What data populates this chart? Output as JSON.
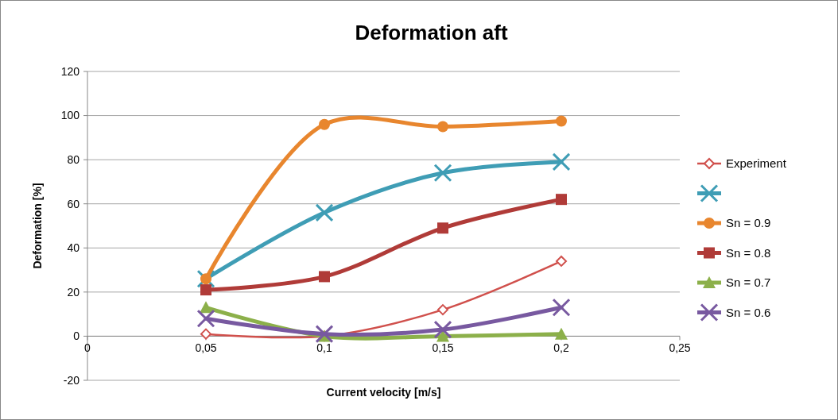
{
  "chart_data": {
    "type": "line",
    "title": "Deformation aft",
    "xlabel": "Current velocity [m/s]",
    "ylabel": "Deformation [%]",
    "x": [
      0.05,
      0.1,
      0.15,
      0.2
    ],
    "xlim": [
      0,
      0.25
    ],
    "xticks": [
      0,
      {
        "value": 0.05,
        "label": "0,05"
      },
      {
        "value": 0.1,
        "label": "0,1"
      },
      {
        "value": 0.15,
        "label": "0,15"
      },
      {
        "value": 0.2,
        "label": "0,2"
      },
      {
        "value": 0.25,
        "label": "0,25"
      }
    ],
    "ylim": [
      -20,
      120
    ],
    "yticks": [
      -20,
      0,
      20,
      40,
      60,
      80,
      100,
      120
    ],
    "grid": "y",
    "legend": "right",
    "line_style": "solid",
    "series": [
      {
        "name": "Experiment",
        "color": "#d0504c",
        "values": [
          1,
          0,
          12,
          34
        ],
        "marker": "diamond"
      },
      {
        "color": "#3f9db5",
        "values": [
          26,
          56,
          74,
          79
        ],
        "marker": "cross"
      },
      {
        "name": "Sn = 0.9",
        "color": "#e8862e",
        "values": [
          26,
          96,
          95,
          97.5
        ],
        "marker": "circle"
      },
      {
        "name": "Sn = 0.8",
        "color": "#b03b38",
        "values": [
          21,
          27,
          49,
          62
        ],
        "marker": "square"
      },
      {
        "name": "Sn = 0.7",
        "color": "#8cb04a",
        "values": [
          13,
          0,
          0,
          1
        ],
        "marker": "triangle"
      },
      {
        "name": "Sn = 0.6",
        "color": "#7859a0",
        "values": [
          8,
          1,
          3,
          13
        ],
        "marker": "cross"
      }
    ]
  }
}
